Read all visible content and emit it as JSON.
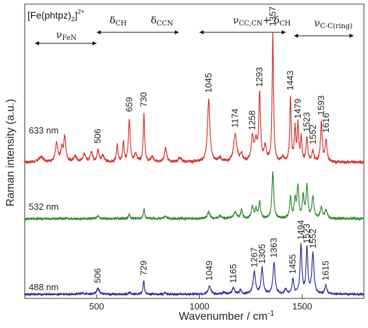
{
  "chart_data": {
    "type": "line",
    "xlabel": "Wavenumber / cm",
    "xlabel_sup": "-1",
    "ylabel": "Raman intensity (a.u.)",
    "xlim": [
      150,
      1800
    ],
    "x_ticks": [
      500,
      1000,
      1500
    ],
    "grid": false,
    "title": {
      "main": "[Fe(phtpz)",
      "sub": "2",
      "close": "]",
      "sup": "2+"
    },
    "regions": [
      {
        "symbol": "ν",
        "sub": "FeN",
        "range": [
          200,
          500
        ]
      },
      {
        "symbol": "δ",
        "sub": "CH",
        "range": [
          500,
          720
        ]
      },
      {
        "symbol": "δ",
        "sub": "CCN",
        "range": [
          720,
          900
        ]
      },
      {
        "symbol": "ν",
        "sub": "CC,CN",
        "mid": "+ δ",
        "sub2": "CH",
        "range": [
          1000,
          1420
        ]
      },
      {
        "symbol": "ν",
        "sub": "C-C(ring)",
        "range": [
          1460,
          1750
        ]
      }
    ],
    "series": [
      {
        "name": "633 nm",
        "color": "#d63232",
        "base": 0.0,
        "peaks": [
          {
            "x": 230,
            "h": 0.06,
            "w": 14
          },
          {
            "x": 305,
            "h": 0.22,
            "w": 7
          },
          {
            "x": 330,
            "h": 0.15,
            "w": 6
          },
          {
            "x": 345,
            "h": 0.3,
            "w": 6
          },
          {
            "x": 395,
            "h": 0.07,
            "w": 8
          },
          {
            "x": 440,
            "h": 0.1,
            "w": 8
          },
          {
            "x": 475,
            "h": 0.12,
            "w": 6
          },
          {
            "x": 506,
            "h": 0.14,
            "w": 6
          },
          {
            "x": 530,
            "h": 0.08,
            "w": 7
          },
          {
            "x": 600,
            "h": 0.22,
            "w": 4
          },
          {
            "x": 630,
            "h": 0.24,
            "w": 4
          },
          {
            "x": 659,
            "h": 0.52,
            "w": 5
          },
          {
            "x": 690,
            "h": 0.1,
            "w": 6
          },
          {
            "x": 730,
            "h": 0.58,
            "w": 4
          },
          {
            "x": 770,
            "h": 0.07,
            "w": 7
          },
          {
            "x": 835,
            "h": 0.16,
            "w": 7
          },
          {
            "x": 905,
            "h": 0.05,
            "w": 9
          },
          {
            "x": 1045,
            "h": 0.75,
            "w": 7
          },
          {
            "x": 1100,
            "h": 0.05,
            "w": 9
          },
          {
            "x": 1174,
            "h": 0.33,
            "w": 9
          },
          {
            "x": 1205,
            "h": 0.08,
            "w": 7
          },
          {
            "x": 1258,
            "h": 0.3,
            "w": 7
          },
          {
            "x": 1275,
            "h": 0.22,
            "w": 6
          },
          {
            "x": 1293,
            "h": 0.82,
            "w": 5
          },
          {
            "x": 1320,
            "h": 0.18,
            "w": 6
          },
          {
            "x": 1357,
            "h": 1.55,
            "w": 4
          },
          {
            "x": 1405,
            "h": 0.06,
            "w": 6
          },
          {
            "x": 1443,
            "h": 0.78,
            "w": 4
          },
          {
            "x": 1465,
            "h": 0.4,
            "w": 4
          },
          {
            "x": 1479,
            "h": 0.44,
            "w": 4
          },
          {
            "x": 1495,
            "h": 0.3,
            "w": 4
          },
          {
            "x": 1523,
            "h": 0.28,
            "w": 5
          },
          {
            "x": 1552,
            "h": 0.13,
            "w": 5
          },
          {
            "x": 1593,
            "h": 0.48,
            "w": 5
          },
          {
            "x": 1616,
            "h": 0.27,
            "w": 5
          }
        ],
        "labels": [
          {
            "x": 506,
            "text": "506"
          },
          {
            "x": 659,
            "text": "659"
          },
          {
            "x": 730,
            "text": "730"
          },
          {
            "x": 1045,
            "text": "1045"
          },
          {
            "x": 1174,
            "text": "1174"
          },
          {
            "x": 1258,
            "text": "1258"
          },
          {
            "x": 1293,
            "text": "1293"
          },
          {
            "x": 1357,
            "text": "1357"
          },
          {
            "x": 1443,
            "text": "1443"
          },
          {
            "x": 1479,
            "text": "1479"
          },
          {
            "x": 1523,
            "text": "1523"
          },
          {
            "x": 1552,
            "text": "1552"
          },
          {
            "x": 1593,
            "text": "1593"
          },
          {
            "x": 1616,
            "text": "1616"
          }
        ]
      },
      {
        "name": "532 nm",
        "color": "#2a8a2a",
        "base": 0.0,
        "peaks": [
          {
            "x": 506,
            "h": 0.04,
            "w": 6
          },
          {
            "x": 659,
            "h": 0.06,
            "w": 5
          },
          {
            "x": 730,
            "h": 0.16,
            "w": 4
          },
          {
            "x": 835,
            "h": 0.04,
            "w": 7
          },
          {
            "x": 1045,
            "h": 0.11,
            "w": 7
          },
          {
            "x": 1100,
            "h": 0.04,
            "w": 8
          },
          {
            "x": 1174,
            "h": 0.1,
            "w": 8
          },
          {
            "x": 1205,
            "h": 0.14,
            "w": 5
          },
          {
            "x": 1258,
            "h": 0.18,
            "w": 6
          },
          {
            "x": 1275,
            "h": 0.14,
            "w": 6
          },
          {
            "x": 1293,
            "h": 0.25,
            "w": 5
          },
          {
            "x": 1357,
            "h": 0.75,
            "w": 5
          },
          {
            "x": 1443,
            "h": 0.33,
            "w": 5
          },
          {
            "x": 1465,
            "h": 0.28,
            "w": 5
          },
          {
            "x": 1479,
            "h": 0.5,
            "w": 5
          },
          {
            "x": 1505,
            "h": 0.35,
            "w": 5
          },
          {
            "x": 1523,
            "h": 0.5,
            "w": 5
          },
          {
            "x": 1552,
            "h": 0.33,
            "w": 6
          },
          {
            "x": 1593,
            "h": 0.16,
            "w": 6
          },
          {
            "x": 1616,
            "h": 0.14,
            "w": 6
          }
        ],
        "labels": []
      },
      {
        "name": "488 nm",
        "color": "#2b2b9e",
        "base": 0.0,
        "peaks": [
          {
            "x": 430,
            "h": 0.03,
            "w": 10
          },
          {
            "x": 506,
            "h": 0.12,
            "w": 7
          },
          {
            "x": 659,
            "h": 0.04,
            "w": 5
          },
          {
            "x": 729,
            "h": 0.27,
            "w": 4
          },
          {
            "x": 835,
            "h": 0.03,
            "w": 7
          },
          {
            "x": 1049,
            "h": 0.17,
            "w": 7
          },
          {
            "x": 1120,
            "h": 0.04,
            "w": 8
          },
          {
            "x": 1165,
            "h": 0.12,
            "w": 7
          },
          {
            "x": 1200,
            "h": 0.08,
            "w": 6
          },
          {
            "x": 1267,
            "h": 0.43,
            "w": 7
          },
          {
            "x": 1305,
            "h": 0.5,
            "w": 6
          },
          {
            "x": 1363,
            "h": 0.62,
            "w": 6
          },
          {
            "x": 1420,
            "h": 0.1,
            "w": 6
          },
          {
            "x": 1455,
            "h": 0.3,
            "w": 5
          },
          {
            "x": 1494,
            "h": 0.97,
            "w": 5
          },
          {
            "x": 1523,
            "h": 0.9,
            "w": 5
          },
          {
            "x": 1552,
            "h": 0.8,
            "w": 6
          },
          {
            "x": 1615,
            "h": 0.17,
            "w": 6
          }
        ],
        "labels": [
          {
            "x": 506,
            "text": "506"
          },
          {
            "x": 729,
            "text": "729"
          },
          {
            "x": 1049,
            "text": "1049"
          },
          {
            "x": 1165,
            "text": "1165"
          },
          {
            "x": 1267,
            "text": "1267"
          },
          {
            "x": 1305,
            "text": "1305"
          },
          {
            "x": 1363,
            "text": "1363"
          },
          {
            "x": 1455,
            "text": "1455"
          },
          {
            "x": 1494,
            "text": "1494"
          },
          {
            "x": 1523,
            "text": "1523"
          },
          {
            "x": 1552,
            "text": "1552"
          },
          {
            "x": 1615,
            "text": "1615"
          }
        ]
      }
    ]
  }
}
